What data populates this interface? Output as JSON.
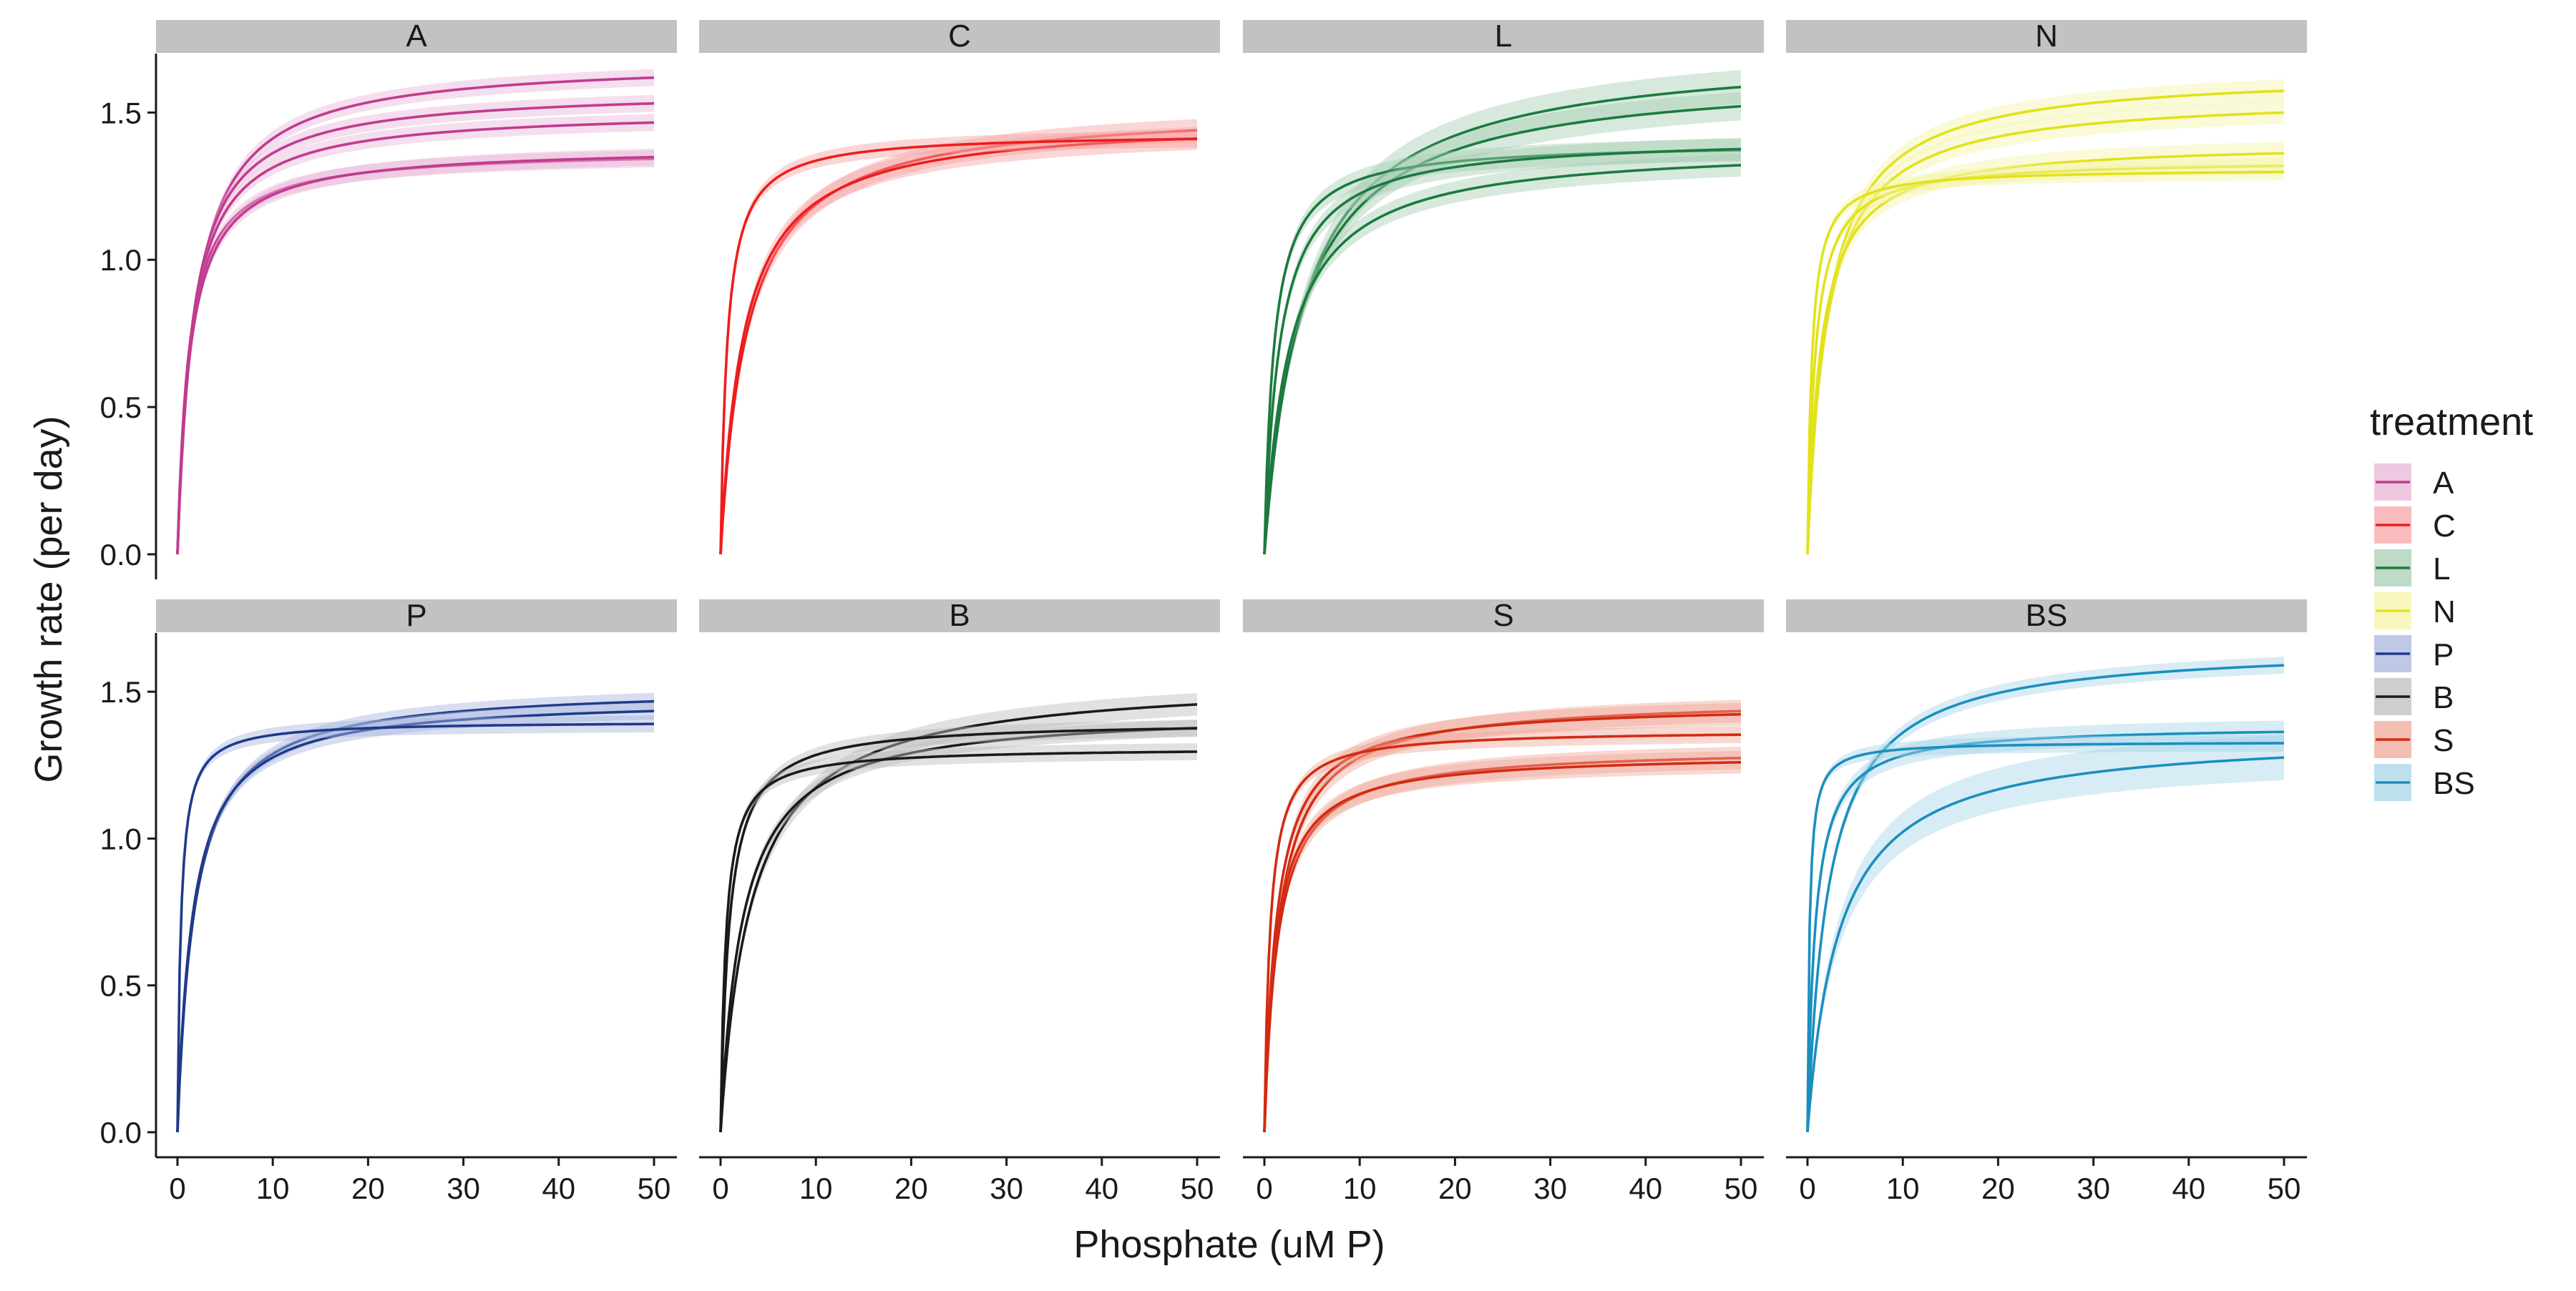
{
  "chart_data": {
    "type": "line",
    "facet_by": "treatment",
    "layout": "2 rows x 4 columns, shared axes",
    "xlabel": "Phosphate (uM P)",
    "ylabel": "Growth rate (per day)",
    "xlim": [
      0,
      50
    ],
    "ylim": [
      0,
      1.7
    ],
    "x_ticks": [
      0,
      10,
      20,
      30,
      40,
      50
    ],
    "y_ticks": [
      0.0,
      0.5,
      1.0,
      1.5
    ],
    "y_tick_labels": [
      "0.0",
      "0.5",
      "1.0",
      "1.5"
    ],
    "grid": false,
    "confidence_ribbons": true,
    "curve_model": "y = umax * x / (k + x)",
    "legend": {
      "title": "treatment",
      "position": "right",
      "items": [
        "A",
        "C",
        "L",
        "N",
        "P",
        "B",
        "S",
        "BS"
      ]
    },
    "panels": [
      {
        "label": "A",
        "color": "#c13b8f",
        "fill": "#e8b5d6",
        "series": [
          {
            "umax": 1.68,
            "k": 1.9,
            "band": 0.03
          },
          {
            "umax": 1.58,
            "k": 1.6,
            "band": 0.03
          },
          {
            "umax": 1.51,
            "k": 1.5,
            "band": 0.03
          },
          {
            "umax": 1.375,
            "k": 1.2,
            "band": 0.03
          },
          {
            "umax": 1.385,
            "k": 1.35,
            "band": 0.03
          }
        ]
      },
      {
        "label": "C",
        "color": "#ee1d1d",
        "fill": "#f7a5a5",
        "series": [
          {
            "umax": 1.52,
            "k": 2.8,
            "band": 0.04
          },
          {
            "umax": 1.48,
            "k": 2.4,
            "band": 0.04
          },
          {
            "umax": 1.43,
            "k": 0.7,
            "band": 0.03
          }
        ]
      },
      {
        "label": "L",
        "color": "#1c7a3f",
        "fill": "#a7cfb4",
        "series": [
          {
            "umax": 1.72,
            "k": 4.2,
            "band": 0.06
          },
          {
            "umax": 1.64,
            "k": 3.9,
            "band": 0.05
          },
          {
            "umax": 1.4,
            "k": 1.0,
            "band": 0.04
          },
          {
            "umax": 1.42,
            "k": 1.6,
            "band": 0.04
          },
          {
            "umax": 1.39,
            "k": 2.6,
            "band": 0.04
          }
        ]
      },
      {
        "label": "N",
        "color": "#e2e21a",
        "fill": "#f4f4a8",
        "series": [
          {
            "umax": 1.64,
            "k": 2.1,
            "band": 0.04
          },
          {
            "umax": 1.56,
            "k": 2.0,
            "band": 0.04
          },
          {
            "umax": 1.4,
            "k": 1.4,
            "band": 0.04
          },
          {
            "umax": 1.34,
            "k": 0.8,
            "band": 0.03
          },
          {
            "umax": 1.31,
            "k": 0.45,
            "band": 0.03
          }
        ]
      },
      {
        "label": "P",
        "color": "#1f3a8a",
        "fill": "#a9b6dd",
        "series": [
          {
            "umax": 1.52,
            "k": 1.8,
            "band": 0.03
          },
          {
            "umax": 1.48,
            "k": 1.6,
            "band": 0.03
          },
          {
            "umax": 1.4,
            "k": 0.35,
            "band": 0.03
          }
        ]
      },
      {
        "label": "B",
        "color": "#1a1a1a",
        "fill": "#bdbdbd",
        "series": [
          {
            "umax": 1.55,
            "k": 3.2,
            "band": 0.04
          },
          {
            "umax": 1.44,
            "k": 2.3,
            "band": 0.03
          },
          {
            "umax": 1.4,
            "k": 0.9,
            "band": 0.03
          },
          {
            "umax": 1.31,
            "k": 0.55,
            "band": 0.03
          }
        ]
      },
      {
        "label": "S",
        "color": "#d42a12",
        "fill": "#f0a898",
        "series": [
          {
            "umax": 1.48,
            "k": 1.6,
            "band": 0.04
          },
          {
            "umax": 1.46,
            "k": 1.3,
            "band": 0.04
          },
          {
            "umax": 1.37,
            "k": 0.6,
            "band": 0.03
          },
          {
            "umax": 1.31,
            "k": 1.4,
            "band": 0.04
          },
          {
            "umax": 1.29,
            "k": 1.2,
            "band": 0.04
          }
        ]
      },
      {
        "label": "BS",
        "color": "#1a8fbf",
        "fill": "#a8d5e8",
        "series": [
          {
            "umax": 1.66,
            "k": 2.2,
            "band": 0.03
          },
          {
            "umax": 1.385,
            "k": 0.8,
            "band": 0.04
          },
          {
            "umax": 1.36,
            "k": 3.3,
            "band": 0.08
          },
          {
            "umax": 1.33,
            "k": 0.2,
            "band": 0.03
          }
        ]
      }
    ]
  }
}
